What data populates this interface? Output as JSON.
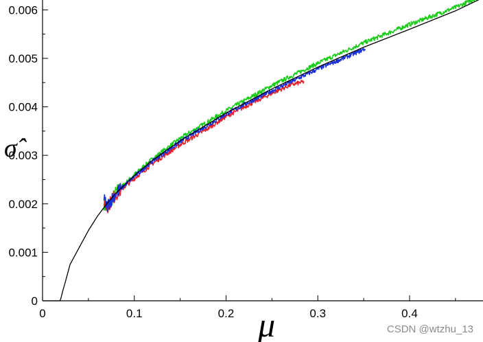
{
  "chart_data": {
    "type": "line",
    "title": "",
    "xlabel": "μ",
    "ylabel": "σ̂",
    "xlim": [
      0,
      0.48
    ],
    "ylim": [
      0,
      0.0066
    ],
    "x_ticks": [
      0,
      0.1,
      0.2,
      0.3,
      0.4
    ],
    "x_tick_labels": [
      "0",
      "0.1",
      "0.2",
      "0.3",
      "0.4"
    ],
    "y_ticks": [
      0,
      0.001,
      0.002,
      0.003,
      0.004,
      0.005,
      0.006
    ],
    "y_tick_labels": [
      "0",
      "0.001",
      "0.002",
      "0.003",
      "0.004",
      "0.005",
      "0.006"
    ],
    "grid": false,
    "legend": "none",
    "series": [
      {
        "color": "#000000",
        "style": "smooth",
        "x": [
          0,
          0.019,
          0.02,
          0.022,
          0.025,
          0.03,
          0.04,
          0.05,
          0.06,
          0.07,
          0.08,
          0.1,
          0.12,
          0.15,
          0.2,
          0.25,
          0.3,
          0.35,
          0.4,
          0.45,
          0.48
        ],
        "y": [
          0,
          0,
          5e-05,
          0.0002,
          0.0004,
          0.00075,
          0.0011,
          0.00145,
          0.00175,
          0.002,
          0.00222,
          0.00258,
          0.0029,
          0.0033,
          0.00387,
          0.00437,
          0.00482,
          0.00523,
          0.0056,
          0.00598,
          0.00625
        ]
      },
      {
        "color": "#e8202a",
        "style": "noisy",
        "x": [
          0.067,
          0.07,
          0.08,
          0.1,
          0.12,
          0.15,
          0.18,
          0.2,
          0.22,
          0.25,
          0.27,
          0.285
        ],
        "y": [
          0.00205,
          0.00192,
          0.0022,
          0.00252,
          0.00283,
          0.00322,
          0.00355,
          0.0038,
          0.004,
          0.00428,
          0.00445,
          0.00452
        ]
      },
      {
        "color": "#1a2fdc",
        "style": "noisy",
        "x": [
          0.067,
          0.07,
          0.08,
          0.1,
          0.12,
          0.15,
          0.18,
          0.2,
          0.22,
          0.25,
          0.28,
          0.3,
          0.33,
          0.352
        ],
        "y": [
          0.0021,
          0.00195,
          0.00222,
          0.00256,
          0.00288,
          0.00328,
          0.00362,
          0.00385,
          0.00405,
          0.00433,
          0.0046,
          0.00478,
          0.00502,
          0.0052
        ]
      },
      {
        "color": "#18cc18",
        "style": "noisy",
        "x": [
          0.067,
          0.07,
          0.08,
          0.1,
          0.12,
          0.15,
          0.2,
          0.25,
          0.3,
          0.35,
          0.4,
          0.45,
          0.48
        ],
        "y": [
          0.002,
          0.0019,
          0.00224,
          0.0026,
          0.00293,
          0.00335,
          0.00392,
          0.00444,
          0.0049,
          0.00532,
          0.0057,
          0.00605,
          0.0063
        ]
      }
    ]
  },
  "watermark": "CSDN @wtzhu_13"
}
